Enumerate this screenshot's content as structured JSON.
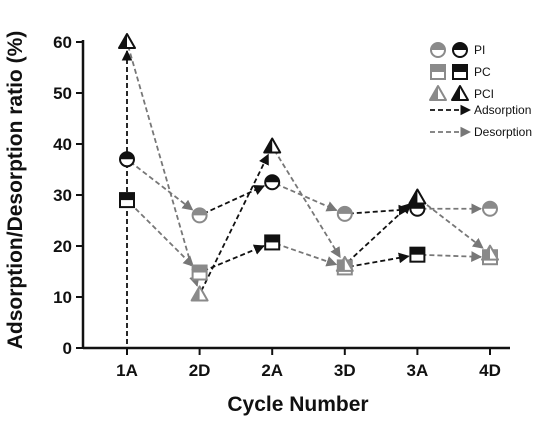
{
  "chart_data": {
    "type": "line",
    "xlabel": "Cycle Number",
    "ylabel": "Adsorption/Desorption ratio (%)",
    "ylim": [
      0,
      60
    ],
    "yticks": [
      0,
      10,
      20,
      30,
      40,
      50,
      60
    ],
    "categories": [
      "1A",
      "2D",
      "2A",
      "3D",
      "3A",
      "4D"
    ],
    "series": [
      {
        "name": "PI",
        "marker": "circle",
        "values": [
          37,
          26,
          32.5,
          26.3,
          27.3,
          27.3
        ]
      },
      {
        "name": "PC",
        "marker": "square",
        "values": [
          29,
          14.8,
          20.7,
          15.8,
          18.3,
          17.8
        ]
      },
      {
        "name": "PCI",
        "marker": "triangle",
        "values": [
          60,
          10.5,
          39.5,
          16.3,
          29.5,
          18.5
        ]
      }
    ],
    "line_styles": [
      {
        "name": "Adsorption",
        "color": "#111111"
      },
      {
        "name": "Desorption",
        "color": "#777777"
      }
    ],
    "adsorption_segments": [
      [
        0,
        1
      ],
      [
        2,
        3
      ],
      [
        4,
        5
      ]
    ],
    "desorption_segments": [
      [
        0,
        1
      ],
      [
        1,
        2
      ],
      [
        2,
        3
      ],
      [
        3,
        4
      ],
      [
        4,
        5
      ]
    ],
    "legend_position": "top-right",
    "grid": false,
    "colors": {
      "adsorption": "#111111",
      "desorption": "#777777",
      "marker_dark": "#111111",
      "marker_gray": "#8a8a8a"
    }
  }
}
